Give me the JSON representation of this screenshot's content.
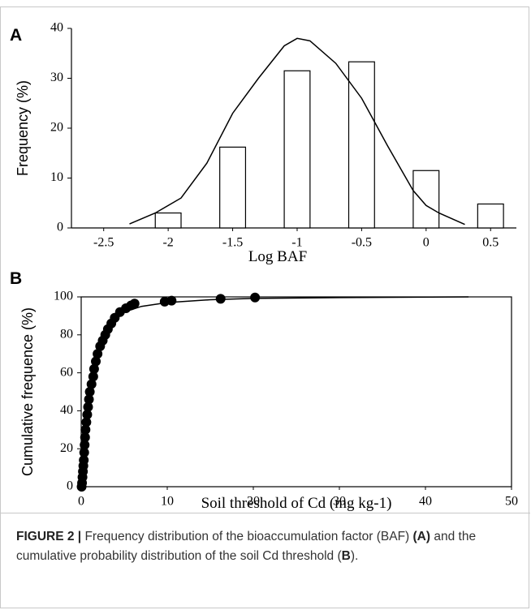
{
  "chart_data": [
    {
      "type": "bar",
      "panel_label": "A",
      "ylabel": "Frequency (%)",
      "xlabel": "Log BAF",
      "x": [
        -2,
        -1.5,
        -1,
        -0.5,
        0,
        0.5
      ],
      "values": [
        3,
        16.2,
        31.5,
        33.3,
        11.5,
        4.8
      ],
      "color": "#ffffff",
      "curve": {
        "x": [
          -2.3,
          -2.1,
          -1.9,
          -1.7,
          -1.5,
          -1.3,
          -1.1,
          -1,
          -0.9,
          -0.7,
          -0.5,
          -0.3,
          -0.1,
          0,
          0.1,
          0.3
        ],
        "y": [
          0.8,
          3,
          6,
          13,
          23,
          30,
          36.5,
          38,
          37.5,
          33,
          26,
          16.5,
          7.5,
          4.5,
          3,
          0.7
        ]
      },
      "xlim": [
        -2.75,
        0.7
      ],
      "xticks": [
        -2.5,
        -2,
        -1.5,
        -1,
        -0.5,
        0,
        0.5
      ],
      "ylim": [
        0,
        40
      ],
      "yticks": [
        0,
        10,
        20,
        30,
        40
      ]
    },
    {
      "type": "scatter",
      "panel_label": "B",
      "ylabel": "Cumulative frequence (%)",
      "xlabel": "Soil threshold of Cd (mg kg-1)",
      "x": [
        0.05,
        0.1,
        0.15,
        0.2,
        0.25,
        0.3,
        0.35,
        0.4,
        0.45,
        0.5,
        0.6,
        0.7,
        0.8,
        0.9,
        1.0,
        1.2,
        1.4,
        1.5,
        1.7,
        1.9,
        2.2,
        2.5,
        2.8,
        3.1,
        3.5,
        3.9,
        4.5,
        5.2,
        5.8,
        6.2,
        9.7,
        10.5,
        16.2,
        20.2
      ],
      "values": [
        0,
        2,
        5,
        8,
        11,
        14,
        18,
        22,
        26,
        30,
        34,
        38,
        42,
        46,
        50,
        54,
        58,
        62,
        66,
        70,
        74,
        77,
        80,
        83,
        86,
        89,
        92,
        94,
        95.5,
        96.5,
        97.5,
        98,
        99,
        99.7
      ],
      "color": "#000000",
      "curve": {
        "x": [
          0.1,
          0.3,
          0.5,
          1,
          1.5,
          2,
          3,
          4,
          5,
          7,
          10,
          15,
          20,
          30,
          45
        ],
        "y": [
          2,
          10,
          25,
          45,
          60,
          70,
          82,
          88,
          92,
          95,
          97,
          98.5,
          99.2,
          99.6,
          100
        ]
      },
      "xlim": [
        0,
        50
      ],
      "xticks": [
        0,
        10,
        20,
        30,
        40,
        50
      ],
      "ylim": [
        0,
        100
      ],
      "yticks": [
        0,
        20,
        40,
        60,
        80,
        100
      ]
    }
  ],
  "caption": {
    "label": "FIGURE 2 |",
    "text_1": "Frequency distribution of the bioaccumulation factor (BAF)",
    "ref_a": "(A)",
    "text_2": "and the cumulative probability distribution of the soil Cd threshold (",
    "ref_b": "B",
    "text_3": ")."
  }
}
